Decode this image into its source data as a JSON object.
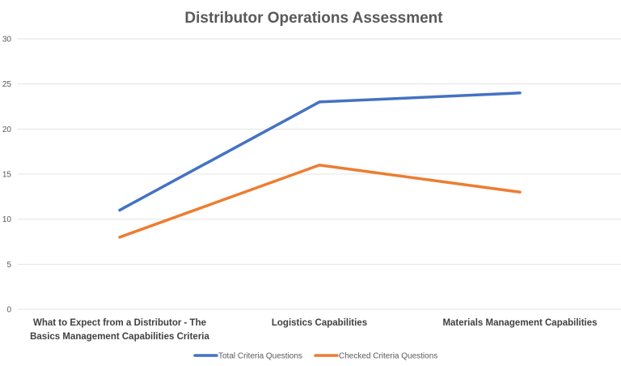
{
  "chart_data": {
    "type": "line",
    "title": "Distributor Operations Assessment",
    "categories": [
      [
        "What to Expect from a Distributor - The",
        "Basics Management Capabilities Criteria"
      ],
      [
        "Logistics Capabilities"
      ],
      [
        "Materials Management Capabilities"
      ]
    ],
    "series": [
      {
        "name": "Total Criteria Questions",
        "color": "#4472C4",
        "values": [
          11,
          23,
          24
        ]
      },
      {
        "name": "Checked Criteria Questions",
        "color": "#ED7D31",
        "values": [
          8,
          16,
          13
        ]
      }
    ],
    "ylim": [
      0,
      30
    ],
    "yticks": [
      0,
      5,
      10,
      15,
      20,
      25,
      30
    ],
    "grid": true,
    "legend": "bottom"
  }
}
